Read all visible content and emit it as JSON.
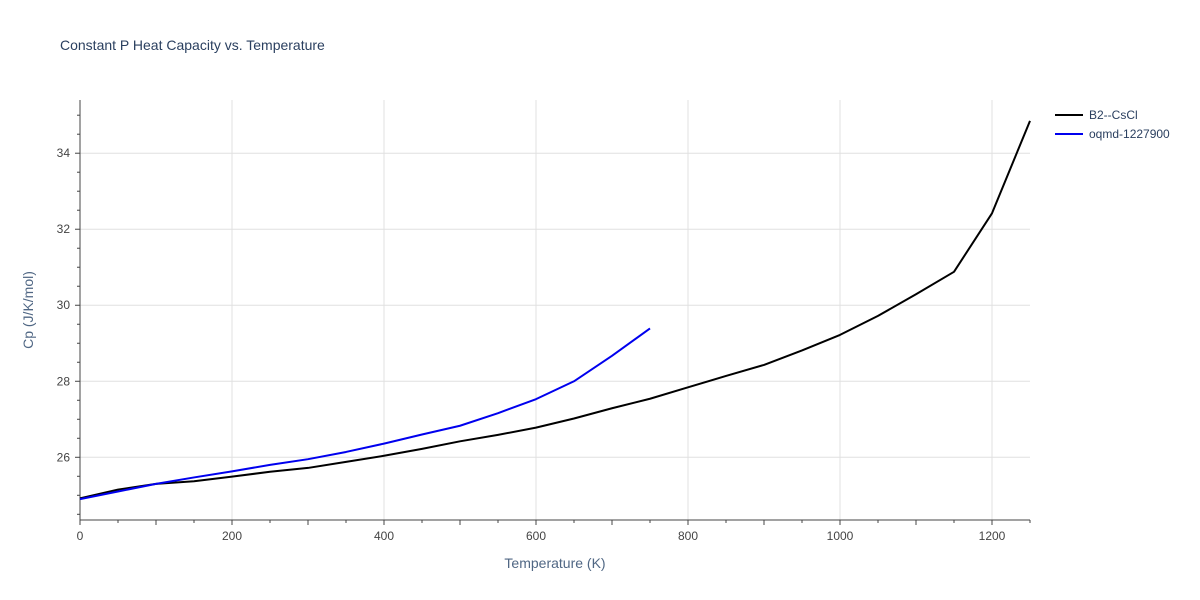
{
  "chart_data": {
    "type": "line",
    "title": "Constant P Heat Capacity vs. Temperature",
    "xlabel": "Temperature (K)",
    "ylabel": "Cp (J/K/mol)",
    "xlim": [
      0,
      1250
    ],
    "ylim": [
      24.35,
      35.4
    ],
    "x_ticks": [
      0,
      200,
      400,
      600,
      800,
      1000,
      1200
    ],
    "y_ticks": [
      26,
      28,
      30,
      32,
      34
    ],
    "grid": true,
    "legend_position": "top-right",
    "series": [
      {
        "name": "B2--CsCl",
        "color": "#000000",
        "x": [
          0,
          50,
          100,
          150,
          200,
          250,
          300,
          350,
          400,
          450,
          500,
          550,
          600,
          650,
          700,
          750,
          800,
          850,
          900,
          950,
          1000,
          1050,
          1100,
          1150,
          1200,
          1250
        ],
        "y": [
          24.92,
          25.15,
          25.3,
          25.37,
          25.49,
          25.62,
          25.72,
          25.88,
          26.04,
          26.22,
          26.42,
          26.59,
          26.78,
          27.02,
          27.29,
          27.54,
          27.84,
          28.14,
          28.43,
          28.81,
          29.22,
          29.72,
          30.29,
          30.88,
          32.42,
          34.85
        ]
      },
      {
        "name": "oqmd-1227900",
        "color": "#0000ee",
        "x": [
          0,
          50,
          100,
          150,
          200,
          250,
          300,
          350,
          400,
          450,
          500,
          550,
          600,
          650,
          700,
          750
        ],
        "y": [
          24.9,
          25.1,
          25.3,
          25.47,
          25.63,
          25.8,
          25.95,
          26.14,
          26.36,
          26.6,
          26.83,
          27.16,
          27.53,
          28.0,
          28.67,
          29.39
        ]
      }
    ]
  }
}
